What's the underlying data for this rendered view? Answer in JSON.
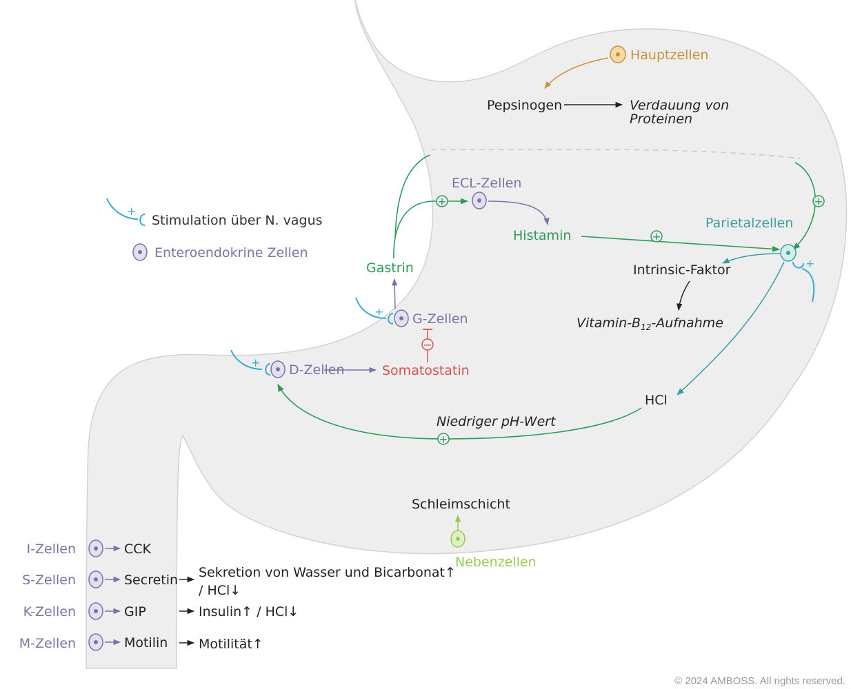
{
  "colors": {
    "stomach_fill": "#eeeeee",
    "stomach_outline": "#d2d2d2",
    "enteroendocrine": "#7b72a8",
    "green": "#2e9b5c",
    "teal": "#3a9da0",
    "vagus_blue": "#3aa9d8",
    "chief_orange": "#c9913a",
    "somatostatin_red": "#d9534f",
    "mucus_green": "#9bc85a",
    "text_dark": "#222222",
    "muted": "#999999"
  },
  "legend": {
    "vagus": "Stimulation über N. vagus",
    "enteroendocrine": "Enteroendokrine Zellen"
  },
  "nodes": {
    "hauptzellen": "Hauptzellen",
    "pepsinogen": "Pepsinogen",
    "protein_digestion_line1": "Verdauung von",
    "protein_digestion_line2": "Proteinen",
    "ecl": "ECL-Zellen",
    "histamin": "Histamin",
    "parietal": "Parietalzellen",
    "intrinsic": "Intrinsic-Faktor",
    "b12_prefix": "Vitamin-B",
    "b12_sub": "12",
    "b12_suffix": "-Aufnahme",
    "gastrin": "Gastrin",
    "g_cells": "G-Zellen",
    "d_cells": "D-Zellen",
    "somatostatin": "Somatostatin",
    "hcl": "HCl",
    "low_ph": "Niedriger pH-Wert",
    "mucus": "Schleimschicht",
    "nebenzellen": "Nebenzellen"
  },
  "duodenum_rows": [
    {
      "cell": "I-Zellen",
      "hormone": "CCK",
      "effect": "",
      "effect2": ""
    },
    {
      "cell": "S-Zellen",
      "hormone": "Secretin",
      "effect": "Sekretion von Wasser und Bicarbonat↑",
      "effect2": "/ HCl↓"
    },
    {
      "cell": "K-Zellen",
      "hormone": "GIP",
      "effect": "Insulin↑ / HCl↓",
      "effect2": ""
    },
    {
      "cell": "M-Zellen",
      "hormone": "Motilin",
      "effect": "Motilität↑",
      "effect2": ""
    }
  ],
  "signs": {
    "plus": "+",
    "minus": "−"
  },
  "copyright": "© 2024 AMBOSS. All rights reserved."
}
